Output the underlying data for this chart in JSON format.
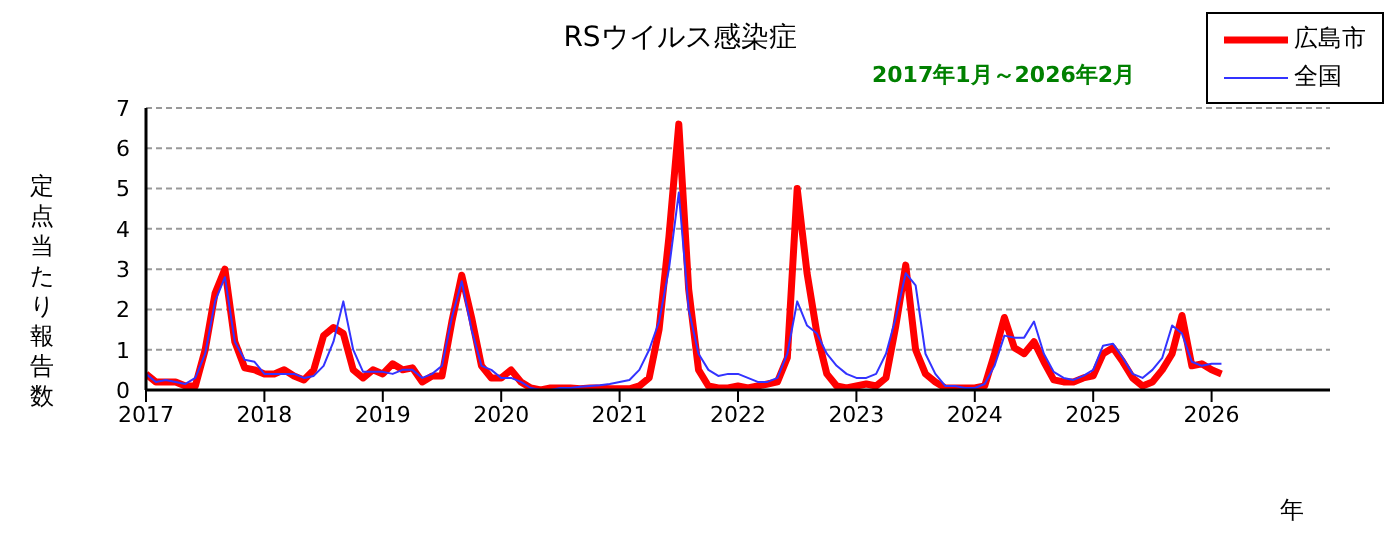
{
  "chart_data": {
    "type": "line",
    "title": "RSウイルス感染症",
    "subtitle": "2017年1月～2026年2月",
    "xlabel": "年",
    "ylabel": "定点当たり報告数",
    "x": [
      "2017-01",
      "2017-02",
      "2017-03",
      "2017-04",
      "2017-05",
      "2017-06",
      "2017-07",
      "2017-08",
      "2017-09",
      "2017-10",
      "2017-11",
      "2017-12",
      "2018-01",
      "2018-02",
      "2018-03",
      "2018-04",
      "2018-05",
      "2018-06",
      "2018-07",
      "2018-08",
      "2018-09",
      "2018-10",
      "2018-11",
      "2018-12",
      "2019-01",
      "2019-02",
      "2019-03",
      "2019-04",
      "2019-05",
      "2019-06",
      "2019-07",
      "2019-08",
      "2019-09",
      "2019-10",
      "2019-11",
      "2019-12",
      "2020-01",
      "2020-02",
      "2020-03",
      "2020-04",
      "2020-05",
      "2020-06",
      "2020-07",
      "2020-08",
      "2020-09",
      "2020-10",
      "2020-11",
      "2020-12",
      "2021-01",
      "2021-02",
      "2021-03",
      "2021-04",
      "2021-05",
      "2021-06",
      "2021-07",
      "2021-08",
      "2021-09",
      "2021-10",
      "2021-11",
      "2021-12",
      "2022-01",
      "2022-02",
      "2022-03",
      "2022-04",
      "2022-05",
      "2022-06",
      "2022-07",
      "2022-08",
      "2022-09",
      "2022-10",
      "2022-11",
      "2022-12",
      "2023-01",
      "2023-02",
      "2023-03",
      "2023-04",
      "2023-05",
      "2023-06",
      "2023-07",
      "2023-08",
      "2023-09",
      "2023-10",
      "2023-11",
      "2023-12",
      "2024-01",
      "2024-02",
      "2024-03",
      "2024-04",
      "2024-05",
      "2024-06",
      "2024-07",
      "2024-08",
      "2024-09",
      "2024-10",
      "2024-11",
      "2024-12",
      "2025-01",
      "2025-02",
      "2025-03",
      "2025-04",
      "2025-05",
      "2025-06",
      "2025-07",
      "2025-08",
      "2025-09",
      "2025-10",
      "2025-11",
      "2025-12",
      "2026-01",
      "2026-02"
    ],
    "series": [
      {
        "name": "広島市",
        "color": "#ff0000",
        "values": [
          0.4,
          0.2,
          0.2,
          0.2,
          0.1,
          0.1,
          1.0,
          2.4,
          3.0,
          1.2,
          0.55,
          0.5,
          0.4,
          0.4,
          0.5,
          0.35,
          0.25,
          0.5,
          1.35,
          1.55,
          1.4,
          0.5,
          0.3,
          0.5,
          0.4,
          0.65,
          0.5,
          0.55,
          0.2,
          0.35,
          0.35,
          1.7,
          2.85,
          1.8,
          0.6,
          0.3,
          0.3,
          0.5,
          0.2,
          0.05,
          0.0,
          0.05,
          0.05,
          0.05,
          0.03,
          0.05,
          0.05,
          0.03,
          0.03,
          0.03,
          0.1,
          0.3,
          1.5,
          3.8,
          6.6,
          2.5,
          0.5,
          0.1,
          0.05,
          0.05,
          0.1,
          0.05,
          0.1,
          0.15,
          0.2,
          0.8,
          5.0,
          2.9,
          1.4,
          0.4,
          0.1,
          0.05,
          0.1,
          0.15,
          0.1,
          0.3,
          1.6,
          3.1,
          1.0,
          0.4,
          0.2,
          0.05,
          0.05,
          0.05,
          0.05,
          0.1,
          0.9,
          1.8,
          1.05,
          0.9,
          1.2,
          0.7,
          0.25,
          0.2,
          0.2,
          0.3,
          0.35,
          0.9,
          1.05,
          0.7,
          0.3,
          0.1,
          0.2,
          0.5,
          0.9,
          1.85,
          0.6,
          0.65,
          0.5,
          0.4
        ]
      },
      {
        "name": "全国",
        "color": "#3333ff",
        "values": [
          0.4,
          0.2,
          0.25,
          0.2,
          0.15,
          0.3,
          0.9,
          2.2,
          2.8,
          1.2,
          0.75,
          0.7,
          0.4,
          0.4,
          0.4,
          0.4,
          0.3,
          0.35,
          0.6,
          1.2,
          2.2,
          1.0,
          0.45,
          0.45,
          0.45,
          0.4,
          0.5,
          0.5,
          0.3,
          0.4,
          0.6,
          1.8,
          2.7,
          1.5,
          0.6,
          0.5,
          0.3,
          0.3,
          0.2,
          0.05,
          0.0,
          0.0,
          0.05,
          0.05,
          0.08,
          0.1,
          0.12,
          0.15,
          0.2,
          0.25,
          0.5,
          1.0,
          1.7,
          3.0,
          4.9,
          2.0,
          0.9,
          0.5,
          0.35,
          0.4,
          0.4,
          0.3,
          0.2,
          0.2,
          0.3,
          0.9,
          2.2,
          1.6,
          1.4,
          0.9,
          0.6,
          0.4,
          0.3,
          0.3,
          0.4,
          0.9,
          1.8,
          2.9,
          2.6,
          0.9,
          0.4,
          0.1,
          0.1,
          0.05,
          0.05,
          0.15,
          0.6,
          1.35,
          1.3,
          1.3,
          1.7,
          0.9,
          0.45,
          0.3,
          0.25,
          0.35,
          0.5,
          1.1,
          1.15,
          0.8,
          0.4,
          0.3,
          0.5,
          0.8,
          1.6,
          1.4,
          0.7,
          0.6,
          0.65,
          0.65
        ]
      }
    ],
    "xlim": [
      "2017",
      "2027"
    ],
    "xticks": [
      "2017",
      "2018",
      "2019",
      "2020",
      "2021",
      "2022",
      "2023",
      "2024",
      "2025",
      "2026"
    ],
    "ylim": [
      0,
      7
    ],
    "yticks": [
      0,
      1,
      2,
      3,
      4,
      5,
      6,
      7
    ],
    "grid": "y",
    "legend": "top right",
    "marker": "none",
    "line_style": "solid"
  }
}
